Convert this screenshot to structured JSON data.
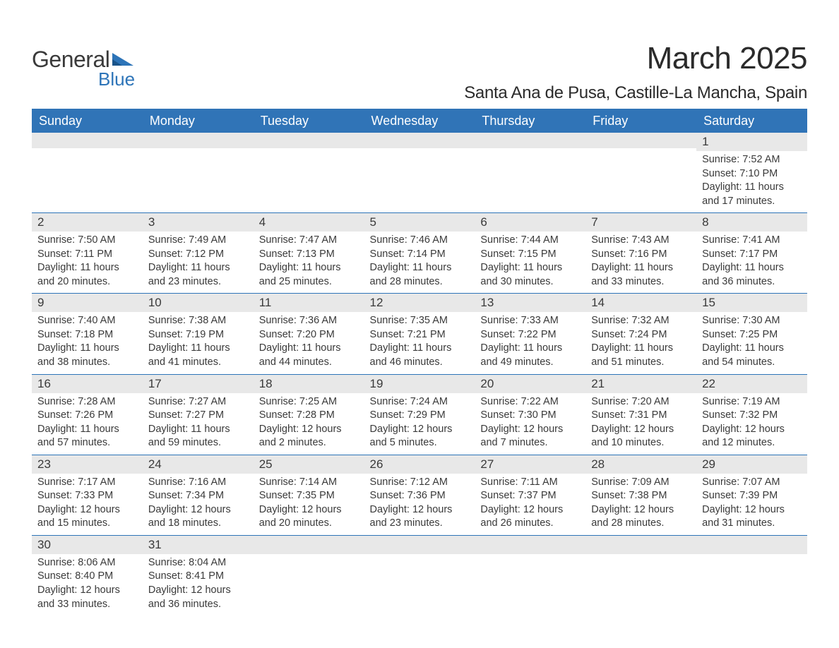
{
  "brand": {
    "line1": "General",
    "line2": "Blue",
    "colors": {
      "text": "#3a3a3a",
      "accent": "#2d74b8",
      "header_bg": "#3074b7",
      "bar_bg": "#e8e8e8"
    }
  },
  "title": "March 2025",
  "location": "Santa Ana de Pusa, Castille-La Mancha, Spain",
  "weekdays": [
    "Sunday",
    "Monday",
    "Tuesday",
    "Wednesday",
    "Thursday",
    "Friday",
    "Saturday"
  ],
  "label_sunrise": "Sunrise:",
  "label_sunset": "Sunset:",
  "label_daylight": "Daylight:",
  "weeks": [
    [
      null,
      null,
      null,
      null,
      null,
      null,
      {
        "day": "1",
        "sunrise": "7:52 AM",
        "sunset": "7:10 PM",
        "daylight": "11 hours and 17 minutes."
      }
    ],
    [
      {
        "day": "2",
        "sunrise": "7:50 AM",
        "sunset": "7:11 PM",
        "daylight": "11 hours and 20 minutes."
      },
      {
        "day": "3",
        "sunrise": "7:49 AM",
        "sunset": "7:12 PM",
        "daylight": "11 hours and 23 minutes."
      },
      {
        "day": "4",
        "sunrise": "7:47 AM",
        "sunset": "7:13 PM",
        "daylight": "11 hours and 25 minutes."
      },
      {
        "day": "5",
        "sunrise": "7:46 AM",
        "sunset": "7:14 PM",
        "daylight": "11 hours and 28 minutes."
      },
      {
        "day": "6",
        "sunrise": "7:44 AM",
        "sunset": "7:15 PM",
        "daylight": "11 hours and 30 minutes."
      },
      {
        "day": "7",
        "sunrise": "7:43 AM",
        "sunset": "7:16 PM",
        "daylight": "11 hours and 33 minutes."
      },
      {
        "day": "8",
        "sunrise": "7:41 AM",
        "sunset": "7:17 PM",
        "daylight": "11 hours and 36 minutes."
      }
    ],
    [
      {
        "day": "9",
        "sunrise": "7:40 AM",
        "sunset": "7:18 PM",
        "daylight": "11 hours and 38 minutes."
      },
      {
        "day": "10",
        "sunrise": "7:38 AM",
        "sunset": "7:19 PM",
        "daylight": "11 hours and 41 minutes."
      },
      {
        "day": "11",
        "sunrise": "7:36 AM",
        "sunset": "7:20 PM",
        "daylight": "11 hours and 44 minutes."
      },
      {
        "day": "12",
        "sunrise": "7:35 AM",
        "sunset": "7:21 PM",
        "daylight": "11 hours and 46 minutes."
      },
      {
        "day": "13",
        "sunrise": "7:33 AM",
        "sunset": "7:22 PM",
        "daylight": "11 hours and 49 minutes."
      },
      {
        "day": "14",
        "sunrise": "7:32 AM",
        "sunset": "7:24 PM",
        "daylight": "11 hours and 51 minutes."
      },
      {
        "day": "15",
        "sunrise": "7:30 AM",
        "sunset": "7:25 PM",
        "daylight": "11 hours and 54 minutes."
      }
    ],
    [
      {
        "day": "16",
        "sunrise": "7:28 AM",
        "sunset": "7:26 PM",
        "daylight": "11 hours and 57 minutes."
      },
      {
        "day": "17",
        "sunrise": "7:27 AM",
        "sunset": "7:27 PM",
        "daylight": "11 hours and 59 minutes."
      },
      {
        "day": "18",
        "sunrise": "7:25 AM",
        "sunset": "7:28 PM",
        "daylight": "12 hours and 2 minutes."
      },
      {
        "day": "19",
        "sunrise": "7:24 AM",
        "sunset": "7:29 PM",
        "daylight": "12 hours and 5 minutes."
      },
      {
        "day": "20",
        "sunrise": "7:22 AM",
        "sunset": "7:30 PM",
        "daylight": "12 hours and 7 minutes."
      },
      {
        "day": "21",
        "sunrise": "7:20 AM",
        "sunset": "7:31 PM",
        "daylight": "12 hours and 10 minutes."
      },
      {
        "day": "22",
        "sunrise": "7:19 AM",
        "sunset": "7:32 PM",
        "daylight": "12 hours and 12 minutes."
      }
    ],
    [
      {
        "day": "23",
        "sunrise": "7:17 AM",
        "sunset": "7:33 PM",
        "daylight": "12 hours and 15 minutes."
      },
      {
        "day": "24",
        "sunrise": "7:16 AM",
        "sunset": "7:34 PM",
        "daylight": "12 hours and 18 minutes."
      },
      {
        "day": "25",
        "sunrise": "7:14 AM",
        "sunset": "7:35 PM",
        "daylight": "12 hours and 20 minutes."
      },
      {
        "day": "26",
        "sunrise": "7:12 AM",
        "sunset": "7:36 PM",
        "daylight": "12 hours and 23 minutes."
      },
      {
        "day": "27",
        "sunrise": "7:11 AM",
        "sunset": "7:37 PM",
        "daylight": "12 hours and 26 minutes."
      },
      {
        "day": "28",
        "sunrise": "7:09 AM",
        "sunset": "7:38 PM",
        "daylight": "12 hours and 28 minutes."
      },
      {
        "day": "29",
        "sunrise": "7:07 AM",
        "sunset": "7:39 PM",
        "daylight": "12 hours and 31 minutes."
      }
    ],
    [
      {
        "day": "30",
        "sunrise": "8:06 AM",
        "sunset": "8:40 PM",
        "daylight": "12 hours and 33 minutes."
      },
      {
        "day": "31",
        "sunrise": "8:04 AM",
        "sunset": "8:41 PM",
        "daylight": "12 hours and 36 minutes."
      },
      null,
      null,
      null,
      null,
      null
    ]
  ]
}
